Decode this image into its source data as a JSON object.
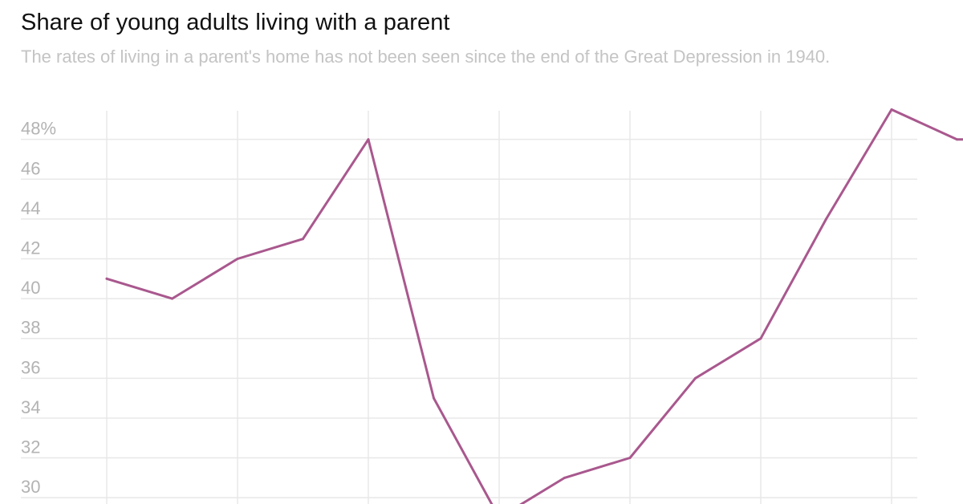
{
  "title": "Share of young adults living with a parent",
  "subtitle": "The rates of living in a parent's home has not been seen since the end of the Great Depression in 1940.",
  "colors": {
    "line": "#a9588e",
    "grid": "#e8e8e8",
    "tick_text": "#b3b3b3",
    "title": "#111111",
    "subtitle": "#c4c4c4"
  },
  "chart_data": {
    "type": "line",
    "title": "Share of young adults living with a parent",
    "subtitle": "The rates of living in a parent's home has not been seen since the end of the Great Depression in 1940.",
    "xlabel": "",
    "ylabel": "",
    "y_tick_labels": [
      "48%",
      "46",
      "44",
      "42",
      "40",
      "38",
      "36",
      "34",
      "32",
      "30"
    ],
    "y_tick_values": [
      48,
      46,
      44,
      42,
      40,
      38,
      36,
      34,
      32,
      30
    ],
    "ylim": [
      29.2,
      49.6
    ],
    "grid": true,
    "x_axis_visible": false,
    "x": [
      1,
      2,
      3,
      4,
      5,
      6,
      7,
      8,
      9,
      10,
      11,
      12,
      13,
      14,
      14.1,
      14.2
    ],
    "values": [
      41,
      40,
      42,
      43,
      48,
      35,
      29,
      31,
      32,
      36,
      38,
      44,
      49.5,
      48,
      48,
      48
    ]
  }
}
